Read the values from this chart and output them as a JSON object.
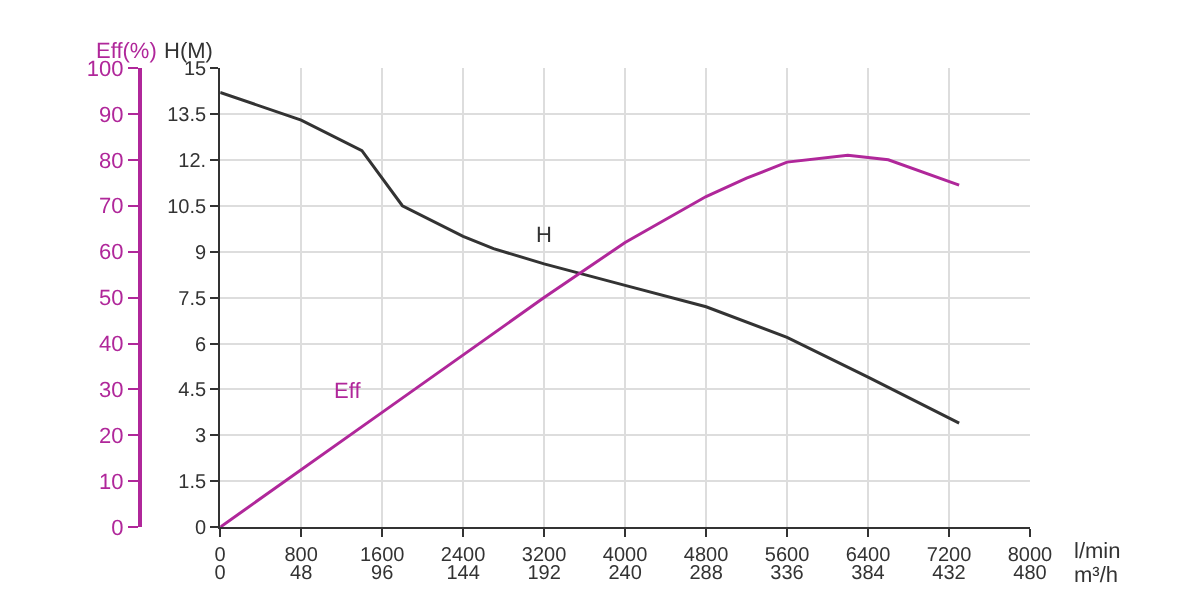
{
  "chart_data": {
    "type": "line",
    "xlabel": "l/min",
    "x2label": "m³/h",
    "ylabel": "H(M)",
    "y2label": "Eff(%)",
    "xlim": [
      0,
      8000
    ],
    "xticks": [
      0,
      800,
      1600,
      2400,
      3200,
      4000,
      4800,
      5600,
      6400,
      7200,
      8000
    ],
    "x2lim": [
      0,
      480
    ],
    "x2ticks": [
      0,
      48,
      96,
      144,
      192,
      240,
      288,
      336,
      384,
      432,
      480
    ],
    "ylim": [
      0,
      15
    ],
    "yticks": [
      0,
      1.5,
      3,
      4.5,
      6,
      7.5,
      9,
      10.5,
      {
        "value": 12,
        "label": "12."
      },
      13.5,
      15
    ],
    "y2lim": [
      0,
      100
    ],
    "y2ticks": [
      0,
      10,
      20,
      30,
      40,
      50,
      60,
      70,
      80,
      90,
      100
    ],
    "grid": true,
    "legend": false,
    "marker": "none",
    "line_style": "solid",
    "series": [
      {
        "name": "H",
        "color": "#333333",
        "x": [
          0,
          800,
          1400,
          1800,
          2400,
          2700,
          3200,
          4000,
          4800,
          5600,
          6400,
          7300
        ],
        "values": [
          14.2,
          13.3,
          12.3,
          10.5,
          9.5,
          9.1,
          8.6,
          7.9,
          7.2,
          6.2,
          4.9,
          3.4
        ]
      },
      {
        "name": "Eff",
        "color": "#b0279a",
        "axis": "y2",
        "x": [
          0,
          1600,
          3200,
          4000,
          4800,
          5200,
          5600,
          6200,
          6600,
          7300
        ],
        "values": [
          0,
          25,
          50,
          62,
          72,
          76,
          79.5,
          81,
          80,
          74.5
        ]
      }
    ]
  }
}
